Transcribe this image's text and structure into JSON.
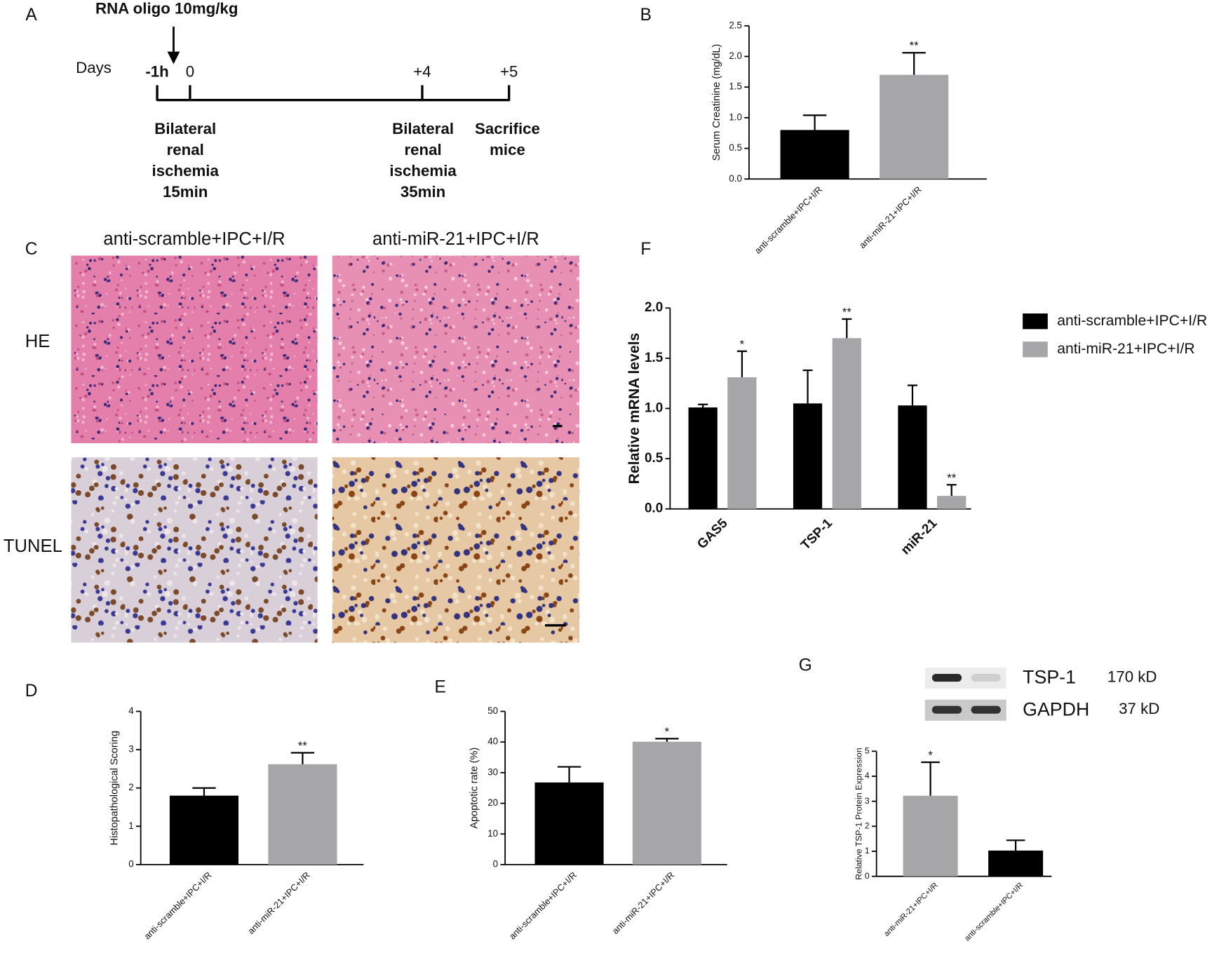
{
  "panel_labels": [
    "A",
    "B",
    "C",
    "D",
    "E",
    "F",
    "G"
  ],
  "timeline": {
    "title": "RNA oligo 10mg/kg",
    "axis_label": "Days",
    "points": [
      {
        "label": "-1h",
        "note": [
          "Bilateral",
          "renal",
          "ischemia",
          "15min"
        ]
      },
      {
        "label": "0"
      },
      {
        "label": "+4",
        "note": [
          "Bilateral",
          "renal",
          "ischemia",
          "35min"
        ]
      },
      {
        "label": "+5",
        "note": [
          "Sacrifice",
          "mice"
        ]
      }
    ]
  },
  "histology": {
    "columns": [
      "anti-scramble+IPC+I/R",
      "anti-miR-21+IPC+I/R"
    ],
    "rows": [
      "HE",
      "TUNEL"
    ]
  },
  "chart_data": [
    {
      "type": "bar",
      "y_label": "Serum Creatinine (mg/dL)",
      "categories": [
        "anti-scramble+IPC+I/R",
        "anti-miR-21+IPC+I/R"
      ],
      "values": [
        0.8,
        1.7
      ],
      "errors": [
        0.24,
        0.36
      ],
      "colors": [
        "#000000",
        "#a6a6a8"
      ],
      "significance": [
        null,
        "**"
      ],
      "ylim": [
        0,
        2.5
      ],
      "yticks": [
        {
          "value": 0,
          "label": "0.0"
        },
        0.5,
        {
          "value": 1,
          "label": "1.0"
        },
        1.5,
        {
          "value": 2,
          "label": "2.0"
        },
        2.5
      ]
    },
    {
      "type": "bar",
      "y_label": "Relative mRNA levels",
      "categories": [
        "GAS5",
        "TSP-1",
        "miR-21"
      ],
      "series": [
        {
          "name": "anti-scramble+IPC+I/R",
          "color": "#000000",
          "values": [
            1.01,
            1.05,
            1.03
          ],
          "errors": [
            0.03,
            0.33,
            0.2
          ]
        },
        {
          "name": "anti-miR-21+IPC+I/R",
          "color": "#a6a6a8",
          "values": [
            1.31,
            1.7,
            0.13
          ],
          "errors": [
            0.26,
            0.19,
            0.11
          ],
          "significance": [
            "*",
            "**",
            "**"
          ]
        }
      ],
      "ylim": [
        0,
        2
      ],
      "yticks": [
        {
          "value": 0,
          "label": "0.0"
        },
        0.5,
        {
          "value": 1,
          "label": "1.0"
        },
        1.5,
        {
          "value": 2,
          "label": "2.0"
        }
      ],
      "legend": "right"
    },
    {
      "type": "bar",
      "y_label": "Histopathological Scoring",
      "categories": [
        "anti-scramble+IPC+I/R",
        "anti-miR-21+IPC+I/R"
      ],
      "values": [
        1.8,
        2.62
      ],
      "errors": [
        0.2,
        0.3
      ],
      "colors": [
        "#000000",
        "#a6a6a8"
      ],
      "significance": [
        null,
        "**"
      ],
      "ylim": [
        0,
        4
      ],
      "yticks": [
        0,
        1,
        2,
        3,
        4
      ]
    },
    {
      "type": "bar",
      "y_label": "Apoptotic rate (%)",
      "categories": [
        "anti-scramble+IPC+I/R",
        "anti-miR-21+IPC+I/R"
      ],
      "values": [
        26.8,
        40.1
      ],
      "errors": [
        5.1,
        1.0
      ],
      "colors": [
        "#000000",
        "#a6a6a8"
      ],
      "significance": [
        null,
        "*"
      ],
      "ylim": [
        0,
        50
      ],
      "yticks": [
        0,
        10,
        20,
        30,
        40,
        50
      ]
    },
    {
      "type": "bar",
      "y_label": "Relative TSP-1  Protein Expression",
      "categories": [
        "anti-miR-21+IPC+I/R",
        "anti-scramble+IPC+I/R"
      ],
      "values": [
        3.22,
        1.03
      ],
      "errors": [
        1.34,
        0.41
      ],
      "colors": [
        "#a6a6a8",
        "#000000"
      ],
      "significance": [
        "*",
        null
      ],
      "ylim": [
        0,
        5
      ],
      "yticks": [
        0,
        1,
        2,
        3,
        4,
        5
      ],
      "blot": [
        {
          "protein": "TSP-1",
          "size": "170 kD"
        },
        {
          "protein": "GAPDH",
          "size": "37 kD"
        }
      ]
    }
  ]
}
